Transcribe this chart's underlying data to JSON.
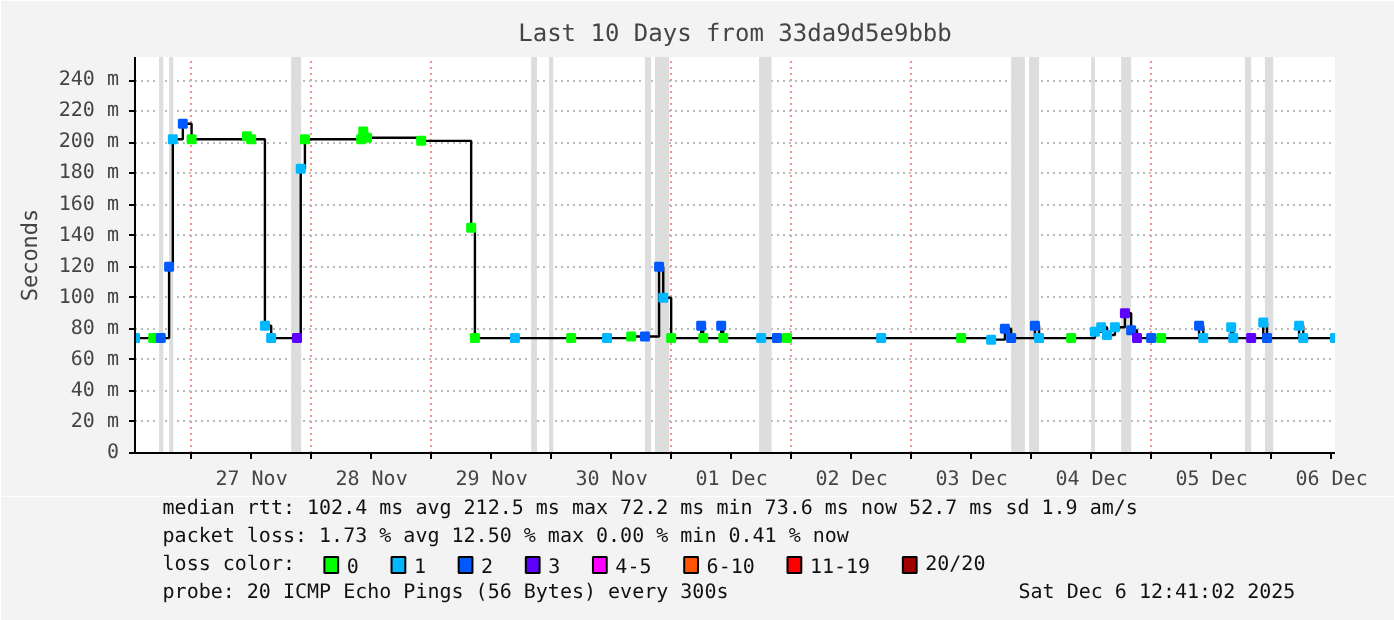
{
  "chart_data": {
    "type": "step",
    "title": "Last 10 Days from 33da9d5e9bbb",
    "ylabel": "Seconds",
    "x": [
      "2025-11-26T12:41",
      "2025-11-26T16:20",
      "2025-11-26T17:50",
      "2025-11-26T19:30",
      "2025-11-26T20:15",
      "2025-11-26T22:15",
      "2025-11-27T00:00",
      "2025-11-27T11:05",
      "2025-11-27T11:55",
      "2025-11-27T14:40",
      "2025-11-27T15:55",
      "2025-11-27T21:05",
      "2025-11-27T21:50",
      "2025-11-27T22:40",
      "2025-11-28T09:55",
      "2025-11-28T10:20",
      "2025-11-28T11:05",
      "2025-11-28T21:55",
      "2025-11-29T07:55",
      "2025-11-29T08:40",
      "2025-11-29T16:40",
      "2025-11-30T03:55",
      "2025-11-30T11:05",
      "2025-11-30T15:55",
      "2025-11-30T18:40",
      "2025-11-30T21:30",
      "2025-11-30T22:20",
      "2025-11-30T23:55",
      "2025-12-01T05:55",
      "2025-12-01T06:20",
      "2025-12-01T09:55",
      "2025-12-01T10:20",
      "2025-12-01T17:55",
      "2025-12-01T21:05",
      "2025-12-01T23:05",
      "2025-12-02T17:55",
      "2025-12-03T09:55",
      "2025-12-03T15:55",
      "2025-12-03T18:40",
      "2025-12-03T19:55",
      "2025-12-04T00:40",
      "2025-12-04T01:30",
      "2025-12-04T07:55",
      "2025-12-04T12:40",
      "2025-12-04T13:55",
      "2025-12-04T15:05",
      "2025-12-04T16:40",
      "2025-12-04T18:40",
      "2025-12-04T19:55",
      "2025-12-04T21:05",
      "2025-12-04T23:55",
      "2025-12-05T01:55",
      "2025-12-05T09:30",
      "2025-12-05T10:20",
      "2025-12-05T15:55",
      "2025-12-05T16:20",
      "2025-12-05T19:55",
      "2025-12-05T22:20",
      "2025-12-05T23:05",
      "2025-12-06T05:30",
      "2025-12-06T06:20",
      "2025-12-06T12:40"
    ],
    "series": [
      {
        "color": "#000000",
        "values": [
          74,
          74,
          74,
          120,
          202,
          212,
          202,
          204,
          202,
          82,
          74,
          74,
          183,
          202,
          202,
          207,
          203,
          201,
          145,
          74,
          74,
          74,
          74,
          75,
          75,
          120,
          100,
          74,
          82,
          74,
          82,
          74,
          74,
          74,
          74,
          74,
          74,
          73,
          80,
          74,
          82,
          74,
          74,
          78,
          81,
          76,
          81,
          90,
          79,
          74,
          74,
          74,
          82,
          74,
          81,
          74,
          74,
          84,
          74,
          82,
          74,
          74
        ]
      },
      {
        "type": "scatter",
        "name": "0",
        "color": "#00ff00",
        "marker": "square",
        "x": [
          "2025-11-26T16:20",
          "2025-11-27T00:00",
          "2025-11-27T11:05",
          "2025-11-27T11:55",
          "2025-11-27T22:40",
          "2025-11-28T09:55",
          "2025-11-28T10:20",
          "2025-11-28T11:05",
          "2025-11-28T21:55",
          "2025-11-29T07:55",
          "2025-11-29T08:40",
          "2025-11-30T03:55",
          "2025-11-30T15:55",
          "2025-11-30T23:55",
          "2025-12-01T06:20",
          "2025-12-01T10:20",
          "2025-12-01T23:05",
          "2025-12-03T09:55",
          "2025-12-04T07:55",
          "2025-12-05T01:55"
        ],
        "values": [
          74,
          202,
          204,
          202,
          202,
          202,
          207,
          203,
          201,
          145,
          74,
          74,
          75,
          74,
          74,
          74,
          74,
          74,
          74,
          74
        ]
      },
      {
        "type": "scatter",
        "name": "1",
        "color": "#00b8ff",
        "marker": "square",
        "x": [
          "2025-11-26T12:41",
          "2025-11-26T20:15",
          "2025-11-27T14:40",
          "2025-11-27T15:55",
          "2025-11-27T21:50",
          "2025-11-29T16:40",
          "2025-11-30T11:05",
          "2025-11-30T22:20",
          "2025-12-01T17:55",
          "2025-12-02T17:55",
          "2025-12-03T15:55",
          "2025-12-04T01:30",
          "2025-12-04T12:40",
          "2025-12-04T13:55",
          "2025-12-04T15:05",
          "2025-12-04T16:40",
          "2025-12-05T10:20",
          "2025-12-05T15:55",
          "2025-12-05T16:20",
          "2025-12-05T22:20",
          "2025-12-06T05:30",
          "2025-12-06T06:20",
          "2025-12-06T12:40"
        ],
        "values": [
          74,
          202,
          82,
          74,
          183,
          74,
          74,
          100,
          74,
          74,
          73,
          74,
          78,
          81,
          76,
          81,
          74,
          81,
          74,
          84,
          82,
          74,
          74
        ]
      },
      {
        "type": "scatter",
        "name": "2",
        "color": "#0059ff",
        "marker": "square",
        "x": [
          "2025-11-26T17:50",
          "2025-11-26T19:30",
          "2025-11-26T22:15",
          "2025-11-30T18:40",
          "2025-11-30T21:30",
          "2025-12-01T05:55",
          "2025-12-01T09:55",
          "2025-12-01T21:05",
          "2025-12-03T18:40",
          "2025-12-03T19:55",
          "2025-12-04T00:40",
          "2025-12-04T19:55",
          "2025-12-04T23:55",
          "2025-12-05T09:30",
          "2025-12-05T23:05"
        ],
        "values": [
          74,
          120,
          212,
          75,
          120,
          82,
          82,
          74,
          80,
          74,
          82,
          79,
          74,
          82,
          74
        ]
      },
      {
        "type": "scatter",
        "name": "3",
        "color": "#5e00ff",
        "marker": "square",
        "x": [
          "2025-11-27T21:05",
          "2025-12-04T18:40",
          "2025-12-04T21:05",
          "2025-12-05T19:55"
        ],
        "values": [
          74,
          90,
          74,
          74
        ]
      },
      {
        "type": "scatter",
        "name": "4-5",
        "color": "#ff00fe",
        "marker": "square",
        "values": [
          null,
          null,
          null,
          null,
          null,
          null,
          null,
          null,
          null,
          null,
          null,
          null,
          null,
          null,
          null,
          null,
          null,
          null,
          null,
          null,
          null,
          null,
          null,
          null,
          null,
          null,
          null,
          null,
          null,
          null,
          null,
          null,
          null,
          null,
          null,
          null,
          null,
          null,
          null,
          null,
          null,
          null,
          null,
          null,
          null,
          null,
          null,
          null,
          null,
          null,
          null,
          null,
          null,
          null,
          null,
          null,
          null,
          null,
          null,
          null,
          null,
          null
        ]
      },
      {
        "type": "scatter",
        "name": "6-10",
        "color": "#ff5500",
        "marker": "square",
        "values": [
          null,
          null,
          null,
          null,
          null,
          null,
          null,
          null,
          null,
          null,
          null,
          null,
          null,
          null,
          null,
          null,
          null,
          null,
          null,
          null,
          null,
          null,
          null,
          null,
          null,
          null,
          null,
          null,
          null,
          null,
          null,
          null,
          null,
          null,
          null,
          null,
          null,
          null,
          null,
          null,
          null,
          null,
          null,
          null,
          null,
          null,
          null,
          null,
          null,
          null,
          null,
          null,
          null,
          null,
          null,
          null,
          null,
          null,
          null,
          null,
          null,
          null
        ]
      },
      {
        "type": "scatter",
        "name": "11-19",
        "color": "#ff0000",
        "marker": "square",
        "values": [
          null,
          null,
          null,
          null,
          null,
          null,
          null,
          null,
          null,
          null,
          null,
          null,
          null,
          null,
          null,
          null,
          null,
          null,
          null,
          null,
          null,
          null,
          null,
          null,
          null,
          null,
          null,
          null,
          null,
          null,
          null,
          null,
          null,
          null,
          null,
          null,
          null,
          null,
          null,
          null,
          null,
          null,
          null,
          null,
          null,
          null,
          null,
          null,
          null,
          null,
          null,
          null,
          null,
          null,
          null,
          null,
          null,
          null,
          null,
          null,
          null,
          null
        ]
      },
      {
        "type": "scatter",
        "name": "20/20",
        "color": "#a10000",
        "marker": "square",
        "values": [
          null,
          null,
          null,
          null,
          null,
          null,
          null,
          null,
          null,
          null,
          null,
          null,
          null,
          null,
          null,
          null,
          null,
          null,
          null,
          null,
          null,
          null,
          null,
          null,
          null,
          null,
          null,
          null,
          null,
          null,
          null,
          null,
          null,
          null,
          null,
          null,
          null,
          null,
          null,
          null,
          null,
          null,
          null,
          null,
          null,
          null,
          null,
          null,
          null,
          null,
          null,
          null,
          null,
          null,
          null,
          null,
          null,
          null,
          null,
          null,
          null,
          null
        ]
      }
    ],
    "legend_title": "loss color:",
    "legend": "bottom",
    "grid": true,
    "xlim": [
      "2025-11-26T12:41",
      "2025-12-06T12:41"
    ],
    "xticks": [
      {
        "value": "2025-11-27T00:00",
        "label": null
      },
      {
        "value": "2025-11-28T00:00",
        "label": null
      },
      {
        "value": "2025-11-29T00:00",
        "label": null
      },
      {
        "value": "2025-11-30T00:00",
        "label": null
      },
      {
        "value": "2025-12-01T00:00",
        "label": null
      },
      {
        "value": "2025-12-02T00:00",
        "label": null
      },
      {
        "value": "2025-12-03T00:00",
        "label": null
      },
      {
        "value": "2025-12-04T00:00",
        "label": null
      },
      {
        "value": "2025-12-05T00:00",
        "label": null
      },
      {
        "value": "2025-12-06T00:00",
        "label": null
      },
      {
        "value": "2025-11-27T12:00",
        "label": "27 Nov"
      },
      {
        "value": "2025-11-28T12:00",
        "label": "28 Nov"
      },
      {
        "value": "2025-11-29T12:00",
        "label": "29 Nov"
      },
      {
        "value": "2025-11-30T12:00",
        "label": "30 Nov"
      },
      {
        "value": "2025-12-01T12:00",
        "label": "01 Dec"
      },
      {
        "value": "2025-12-02T12:00",
        "label": "02 Dec"
      },
      {
        "value": "2025-12-03T12:00",
        "label": "03 Dec"
      },
      {
        "value": "2025-12-04T12:00",
        "label": "04 Dec"
      },
      {
        "value": "2025-12-05T12:00",
        "label": "05 Dec"
      },
      {
        "value": "2025-12-06T12:00",
        "label": "06 Dec"
      }
    ],
    "ylim": [
      0,
      255
    ],
    "yticks": [
      0,
      {
        "value": 20,
        "label": "20 m"
      },
      {
        "value": 40,
        "label": "40 m"
      },
      {
        "value": 60,
        "label": "60 m"
      },
      {
        "value": 80,
        "label": "80 m"
      },
      {
        "value": 100,
        "label": "100 m"
      },
      {
        "value": 120,
        "label": "120 m"
      },
      {
        "value": 140,
        "label": "140 m"
      },
      {
        "value": 160,
        "label": "160 m"
      },
      {
        "value": 180,
        "label": "180 m"
      },
      {
        "value": 200,
        "label": "200 m"
      },
      {
        "value": 220,
        "label": "220 m"
      },
      {
        "value": 240,
        "label": "240 m"
      }
    ],
    "bands": [
      {
        "axis": "x",
        "from": "2025-11-26T17:30",
        "to": "2025-11-26T18:20",
        "color": "#dddddd"
      },
      {
        "axis": "x",
        "from": "2025-11-26T19:30",
        "to": "2025-11-26T20:20",
        "color": "#dddddd"
      },
      {
        "axis": "x",
        "from": "2025-11-27T19:55",
        "to": "2025-11-27T21:55",
        "color": "#dddddd"
      },
      {
        "axis": "x",
        "from": "2025-11-29T19:55",
        "to": "2025-11-29T21:05",
        "color": "#dddddd"
      },
      {
        "axis": "x",
        "from": "2025-11-29T23:30",
        "to": "2025-11-30T00:20",
        "color": "#dddddd"
      },
      {
        "axis": "x",
        "from": "2025-11-30T18:40",
        "to": "2025-11-30T19:55",
        "color": "#dddddd"
      },
      {
        "axis": "x",
        "from": "2025-11-30T20:40",
        "to": "2025-11-30T23:30",
        "color": "#dddddd"
      },
      {
        "axis": "x",
        "from": "2025-12-01T17:30",
        "to": "2025-12-01T20:00",
        "color": "#dddddd"
      },
      {
        "axis": "x",
        "from": "2025-12-03T19:55",
        "to": "2025-12-03T22:40",
        "color": "#dddddd"
      },
      {
        "axis": "x",
        "from": "2025-12-03T23:30",
        "to": "2025-12-04T01:30",
        "color": "#dddddd"
      },
      {
        "axis": "x",
        "from": "2025-12-04T11:55",
        "to": "2025-12-04T12:40",
        "color": "#dddddd"
      },
      {
        "axis": "x",
        "from": "2025-12-04T17:55",
        "to": "2025-12-04T19:55",
        "color": "#dddddd"
      },
      {
        "axis": "x",
        "from": "2025-12-05T18:40",
        "to": "2025-12-05T19:55",
        "color": "#dddddd"
      },
      {
        "axis": "x",
        "from": "2025-12-05T22:40",
        "to": "2025-12-06T00:20",
        "color": "#dddddd"
      }
    ],
    "annotations": [
      "median rtt:  102.4 ms avg  212.5 ms max  72.2 ms min  73.6 ms now  52.7 ms sd  1.9  am/s",
      "packet loss: 1.73 % avg  12.50 % max  0.00 % min  0.41 % now",
      "probe:  20 ICMP Echo Pings (56 Bytes) every 300s",
      "Sat Dec  6 12:41:02 2025"
    ]
  }
}
